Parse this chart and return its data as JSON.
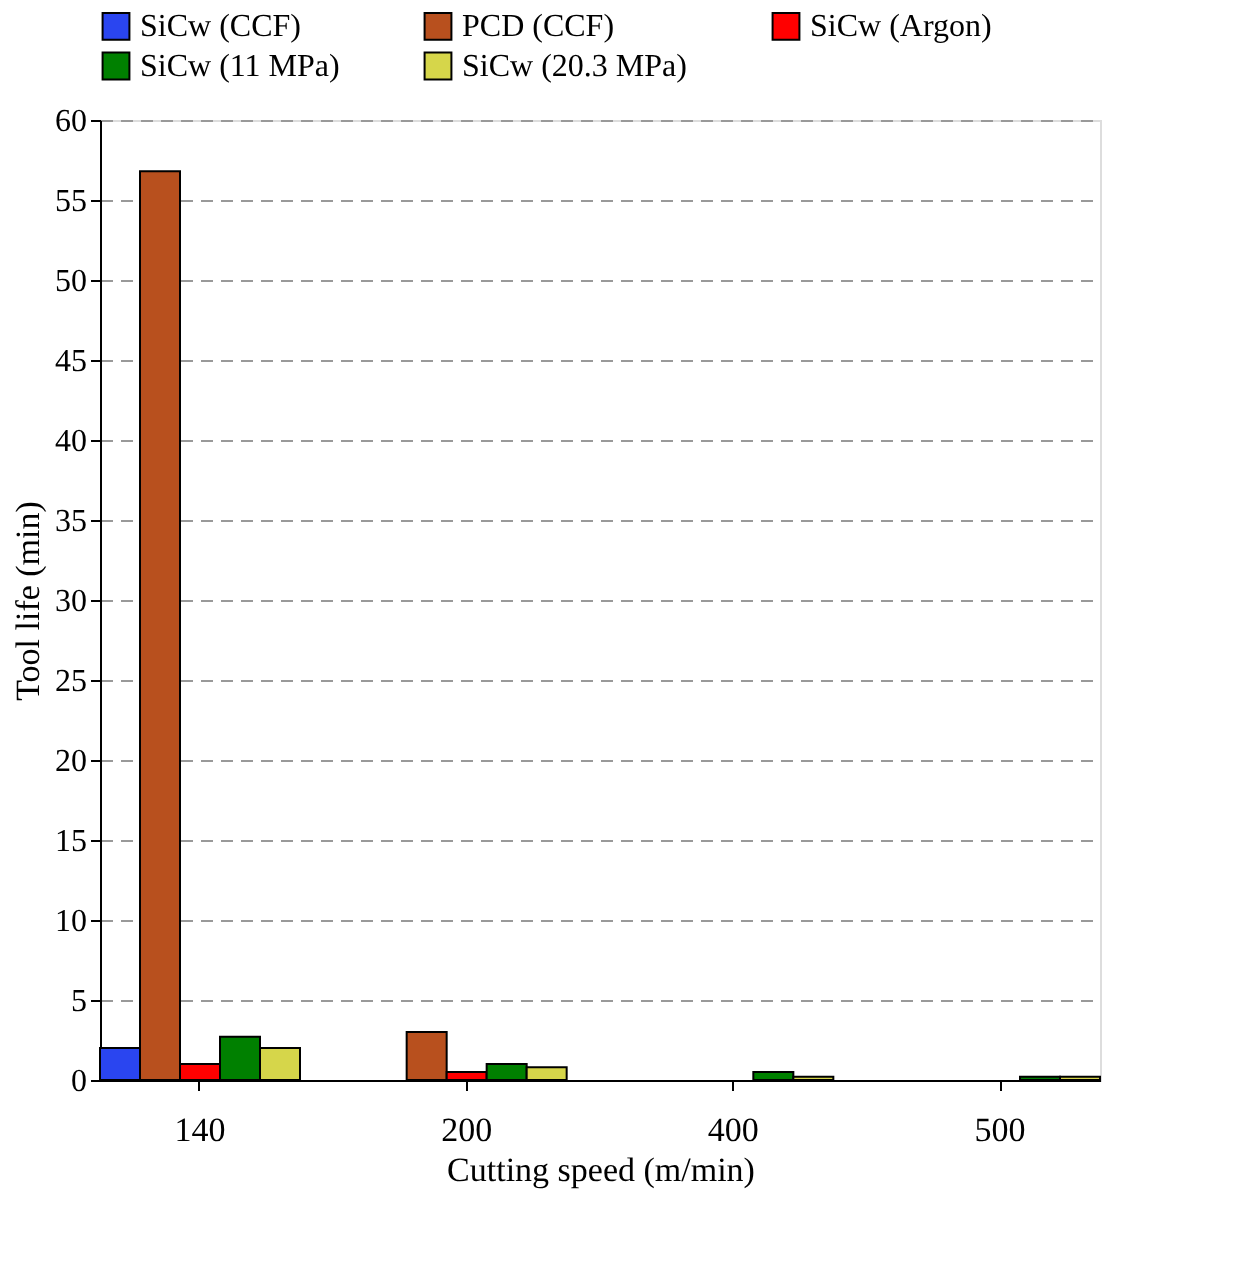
{
  "chart_data": {
    "type": "bar",
    "xlabel": "Cutting speed (m/min)",
    "ylabel": "Tool life (min)",
    "categories": [
      "140",
      "200",
      "400",
      "500"
    ],
    "series": [
      {
        "name": "SiCw (CCF)",
        "color": "#2a45f0",
        "values": [
          2.0,
          null,
          null,
          null
        ]
      },
      {
        "name": "PCD (CCF)",
        "color": "#b8501e",
        "values": [
          56.8,
          3.0,
          null,
          null
        ]
      },
      {
        "name": "SiCw (Argon)",
        "color": "#ff0000",
        "values": [
          1.0,
          0.5,
          null,
          null
        ]
      },
      {
        "name": "SiCw (11 MPa)",
        "color": "#008000",
        "values": [
          2.7,
          1.0,
          0.5,
          0.2
        ]
      },
      {
        "name": "SiCw (20.3 MPa)",
        "color": "#d6d64a",
        "values": [
          2.0,
          0.8,
          0.2,
          0.2
        ]
      }
    ],
    "ylim": [
      0,
      60
    ],
    "yticks": [
      0,
      5,
      10,
      15,
      20,
      25,
      30,
      35,
      40,
      45,
      50,
      55,
      60
    ],
    "grid": "y",
    "legend": "top"
  }
}
